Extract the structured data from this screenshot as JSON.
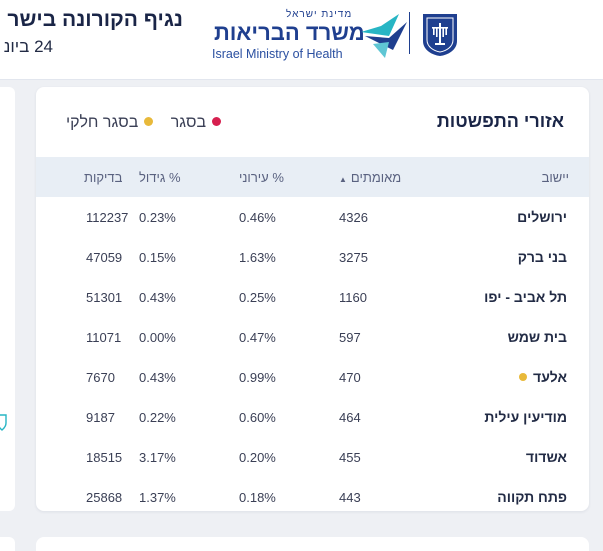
{
  "header": {
    "title": "נגיף הקורונה בישר",
    "date": "24 ביונ",
    "logo": {
      "state_small": "מדינת ישראל",
      "ministry_he": "משרד הבריאות",
      "ministry_en": "Israel Ministry of Health"
    },
    "colors": {
      "brand_blue": "#1f3f8f",
      "accent_teal": "#27b5c4"
    }
  },
  "card": {
    "title": "אזורי התפשטות",
    "legend": [
      {
        "label": "בסגר",
        "color": "#d6204f"
      },
      {
        "label": "בסגר חלקי",
        "color": "#e8b93a"
      }
    ],
    "columns": {
      "city": "יישוב",
      "confirmed": "מאומתים",
      "positive_pct": "% עירוני",
      "growth_pct": "% גידול",
      "tests": "בדיקות"
    },
    "sort_icon": "chevron-up-icon",
    "rows": [
      {
        "city": "ירושלים",
        "confirmed": "4326",
        "positive_pct": "0.46%",
        "growth_pct": "0.23%",
        "tests": "112237",
        "status": ""
      },
      {
        "city": "בני ברק",
        "confirmed": "3275",
        "positive_pct": "1.63%",
        "growth_pct": "0.15%",
        "tests": "47059",
        "status": ""
      },
      {
        "city": "תל אביב - יפו",
        "confirmed": "1160",
        "positive_pct": "0.25%",
        "growth_pct": "0.43%",
        "tests": "51301",
        "status": ""
      },
      {
        "city": "בית שמש",
        "confirmed": "597",
        "positive_pct": "0.47%",
        "growth_pct": "0.00%",
        "tests": "11071",
        "status": ""
      },
      {
        "city": "אלעד",
        "confirmed": "470",
        "positive_pct": "0.99%",
        "growth_pct": "0.43%",
        "tests": "7670",
        "status": "partial"
      },
      {
        "city": "מודיעין עילית",
        "confirmed": "464",
        "positive_pct": "0.60%",
        "growth_pct": "0.22%",
        "tests": "9187",
        "status": ""
      },
      {
        "city": "אשדוד",
        "confirmed": "455",
        "positive_pct": "0.20%",
        "growth_pct": "3.17%",
        "tests": "18515",
        "status": ""
      },
      {
        "city": "פתח תקווה",
        "confirmed": "443",
        "positive_pct": "0.18%",
        "growth_pct": "1.37%",
        "tests": "25868",
        "status": ""
      }
    ]
  }
}
